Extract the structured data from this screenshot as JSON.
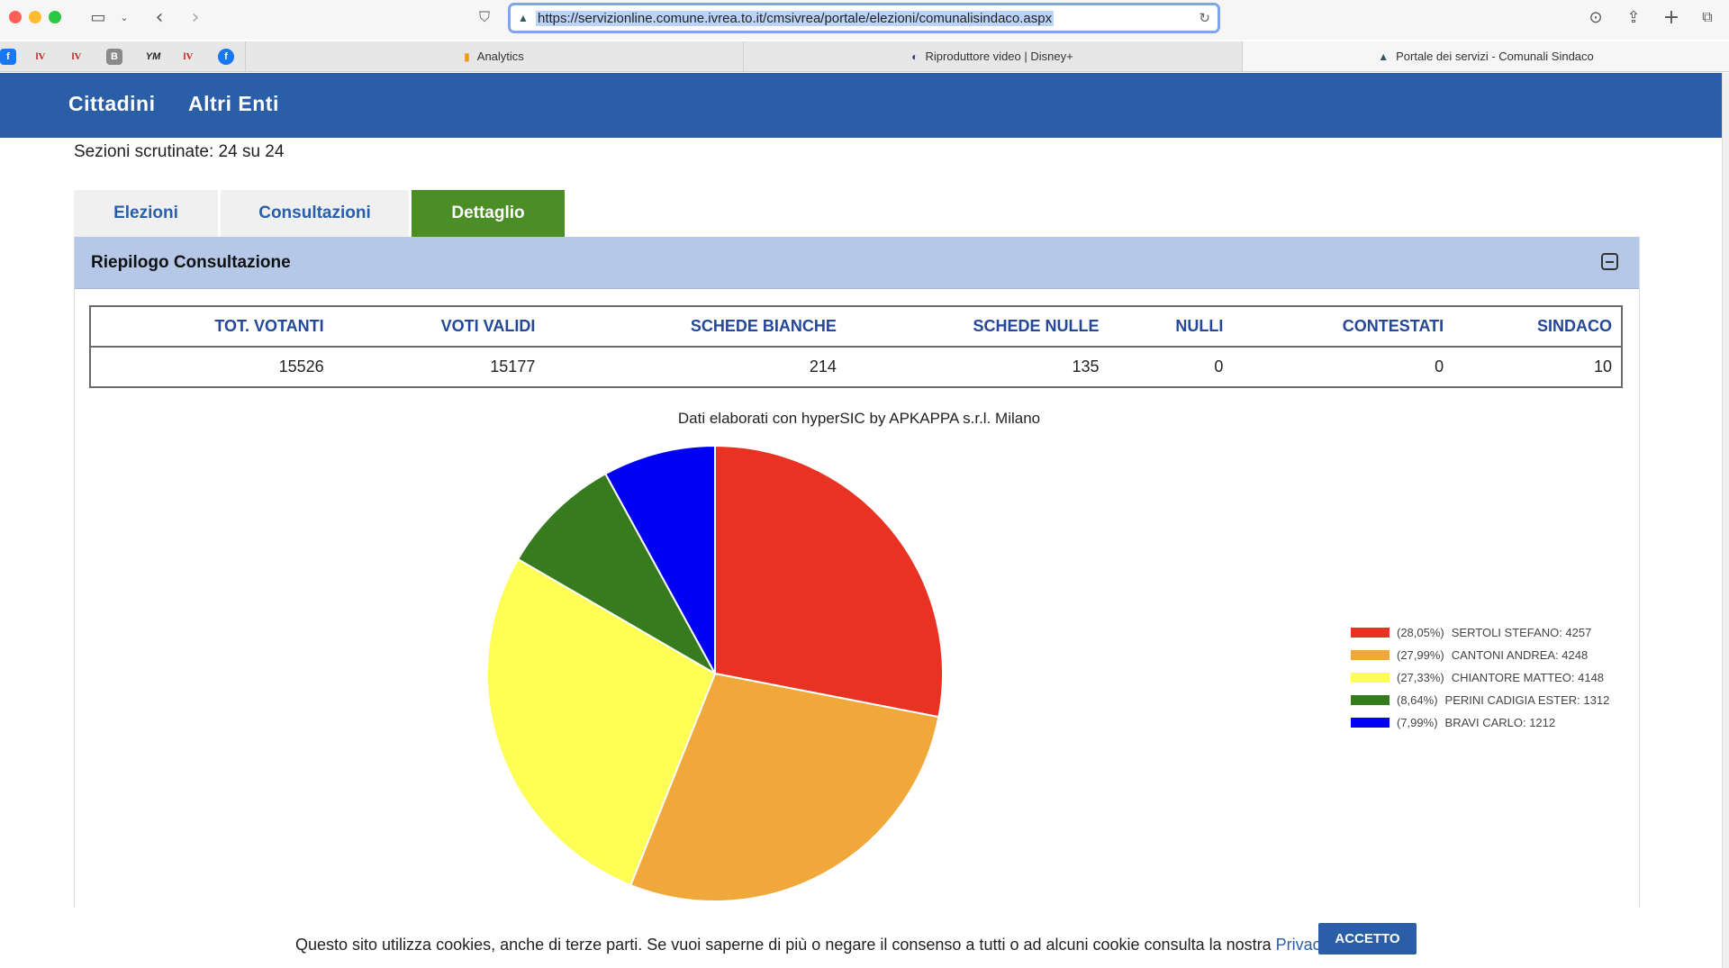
{
  "browser": {
    "url": "https://servizionline.comune.ivrea.to.it/cmsivrea/portale/elezioni/comunalisindaco.aspx",
    "bookmarks": [
      "f",
      "lV",
      "lV",
      "B",
      "YM",
      "lV",
      "f"
    ],
    "tabs": [
      {
        "label": "Analytics",
        "icon": "analytics-icon"
      },
      {
        "label": "Riproduttore video | Disney+",
        "icon": "disney-icon"
      },
      {
        "label": "Portale dei servizi - Comunali Sindaco",
        "icon": "site-icon"
      }
    ]
  },
  "nav": {
    "cittadini": "Cittadini",
    "altri_enti": "Altri Enti"
  },
  "sezioni": "Sezioni scrutinate: 24 su 24",
  "page_tabs": {
    "elezioni": "Elezioni",
    "consultazioni": "Consultazioni",
    "dettaglio": "Dettaglio"
  },
  "panel": {
    "title": "Riepilogo Consultazione"
  },
  "summary": {
    "headers": [
      "TOT. VOTANTI",
      "VOTI VALIDI",
      "SCHEDE BIANCHE",
      "SCHEDE NULLE",
      "NULLI",
      "CONTESTATI",
      "SINDACO"
    ],
    "values": [
      "15526",
      "15177",
      "214",
      "135",
      "0",
      "0",
      "10"
    ]
  },
  "chart_note": "Dati elaborati con hyperSIC by APKAPPA s.r.l. Milano",
  "chart_data": {
    "type": "pie",
    "categories": [
      "SERTOLI STEFANO",
      "CANTONI ANDREA",
      "CHIANTORE MATTEO",
      "PERINI CADIGIA ESTER",
      "BRAVI CARLO"
    ],
    "values": [
      4257,
      4248,
      4148,
      1312,
      1212
    ],
    "percent_labels": [
      "(28,05%)",
      "(27,99%)",
      "(27,33%)",
      "(8,64%)",
      "(7,99%)"
    ],
    "legend_labels": [
      "SERTOLI STEFANO: 4257",
      "CANTONI ANDREA: 4248",
      "CHIANTORE MATTEO: 4148",
      "PERINI CADIGIA ESTER: 1312",
      "BRAVI CARLO: 1212"
    ],
    "colors": [
      "#e83324",
      "#f0a83a",
      "#fefe55",
      "#367c1f",
      "#0000f5"
    ],
    "legend_position": "right"
  },
  "cookie": {
    "text": "Questo sito utilizza cookies, anche di terze parti. Se vuoi saperne di più o negare il consenso a tutti o ad alcuni cookie consulta la nostra ",
    "link": "Privacy policy",
    "suffix": ".",
    "button": "ACCETTO"
  }
}
